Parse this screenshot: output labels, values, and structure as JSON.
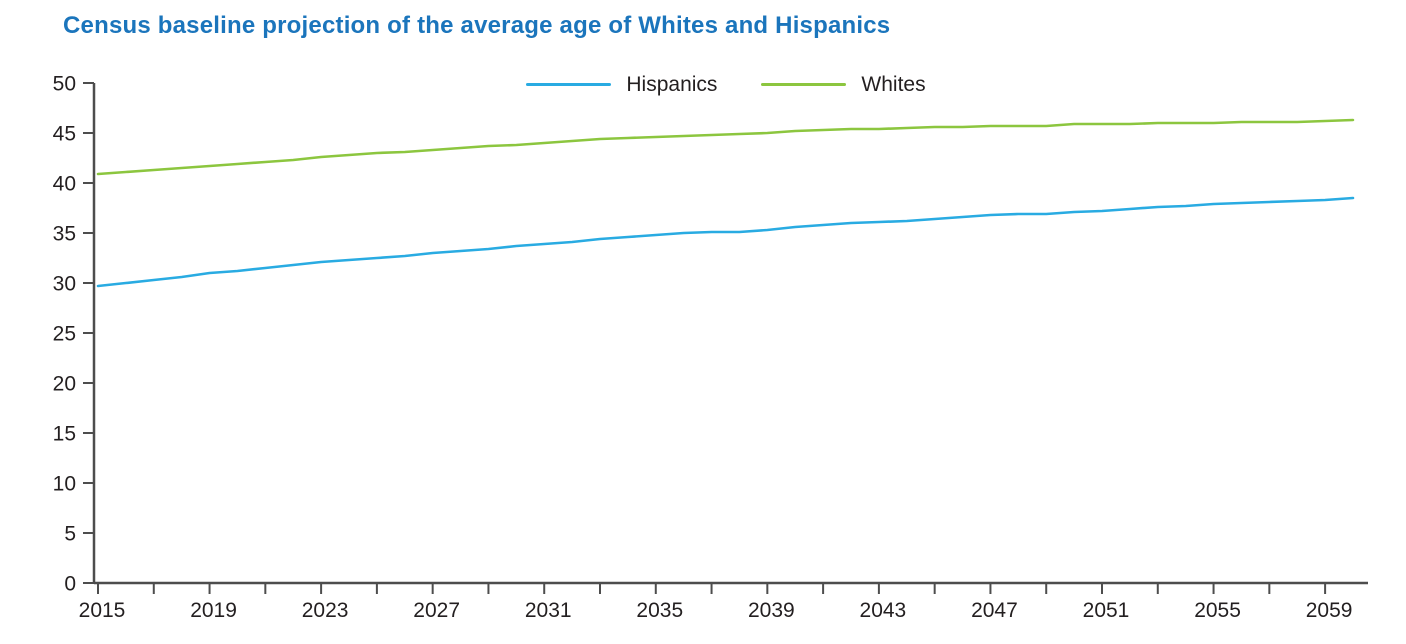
{
  "chart_data": {
    "type": "line",
    "title": "Census baseline projection of the average age of Whites and Hispanics",
    "title_color": "#1b75bc",
    "xlabel": "",
    "ylabel": "",
    "xlim": [
      2015,
      2060
    ],
    "ylim": [
      0,
      50
    ],
    "y_tick_step": 5,
    "x_tick_step": 2,
    "x_label_step": 4,
    "grid": false,
    "legend_position": "top-center",
    "axis_color": "#4d4d4d",
    "tick_label_color": "#231f20",
    "x": [
      2015,
      2016,
      2017,
      2018,
      2019,
      2020,
      2021,
      2022,
      2023,
      2024,
      2025,
      2026,
      2027,
      2028,
      2029,
      2030,
      2031,
      2032,
      2033,
      2034,
      2035,
      2036,
      2037,
      2038,
      2039,
      2040,
      2041,
      2042,
      2043,
      2044,
      2045,
      2046,
      2047,
      2048,
      2049,
      2050,
      2051,
      2052,
      2053,
      2054,
      2055,
      2056,
      2057,
      2058,
      2059,
      2060
    ],
    "series": [
      {
        "name": "Hispanics",
        "color": "#29abe2",
        "values": [
          29.7,
          30.0,
          30.3,
          30.6,
          31.0,
          31.2,
          31.5,
          31.8,
          32.1,
          32.3,
          32.5,
          32.7,
          33.0,
          33.2,
          33.4,
          33.7,
          33.9,
          34.1,
          34.4,
          34.6,
          34.8,
          35.0,
          35.1,
          35.1,
          35.3,
          35.6,
          35.8,
          36.0,
          36.1,
          36.2,
          36.4,
          36.6,
          36.8,
          36.9,
          36.9,
          37.1,
          37.2,
          37.4,
          37.6,
          37.7,
          37.9,
          38.0,
          38.1,
          38.2,
          38.3,
          38.5
        ]
      },
      {
        "name": "Whites",
        "color": "#8cc63f",
        "values": [
          40.9,
          41.1,
          41.3,
          41.5,
          41.7,
          41.9,
          42.1,
          42.3,
          42.6,
          42.8,
          43.0,
          43.1,
          43.3,
          43.5,
          43.7,
          43.8,
          44.0,
          44.2,
          44.4,
          44.5,
          44.6,
          44.7,
          44.8,
          44.9,
          45.0,
          45.2,
          45.3,
          45.4,
          45.4,
          45.5,
          45.6,
          45.6,
          45.7,
          45.7,
          45.7,
          45.9,
          45.9,
          45.9,
          46.0,
          46.0,
          46.0,
          46.1,
          46.1,
          46.1,
          46.2,
          46.3
        ]
      }
    ],
    "y_tick_labels": [
      "0",
      "5",
      "10",
      "15",
      "20",
      "25",
      "30",
      "35",
      "40",
      "45",
      "50"
    ],
    "x_tick_labels": [
      "2015",
      "2019",
      "2023",
      "2027",
      "2031",
      "2035",
      "2039",
      "2043",
      "2047",
      "2051",
      "2055",
      "2059"
    ]
  }
}
